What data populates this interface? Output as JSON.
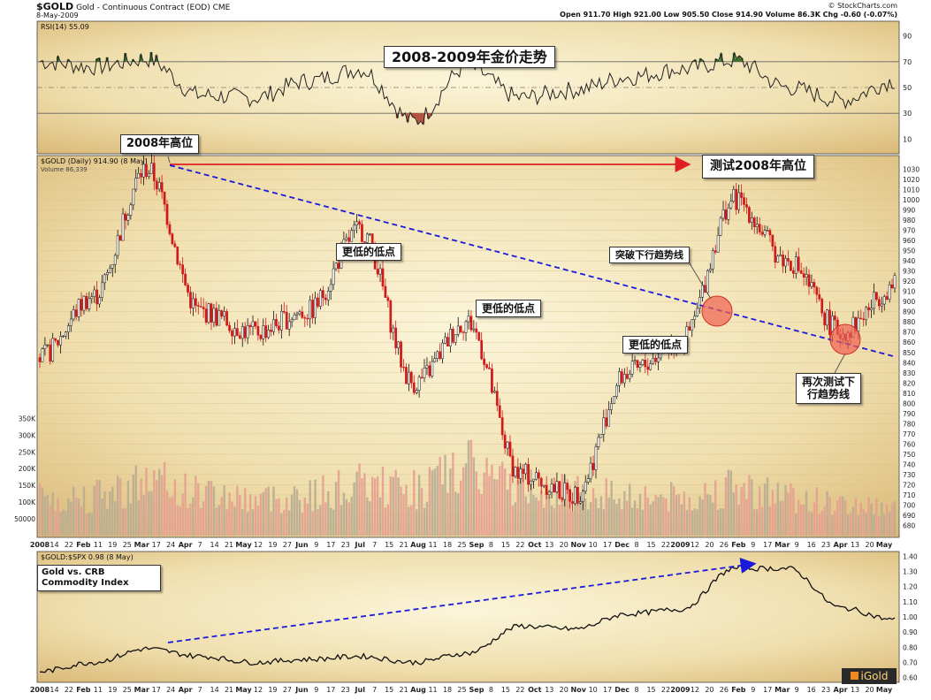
{
  "header": {
    "symbol": "$GOLD",
    "name": "Gold - Continuous Contract (EOD)",
    "exchange": "CME",
    "date": "8-May-2009",
    "stats_label": "Open 911.70  High 921.00  Low 905.50  Close 914.90  Volume 86.3K  Chg -0.60 (-0.07%)",
    "stockcharts": "© StockCharts.com"
  },
  "rsi_panel": {
    "label": "RSI(14) 55.09",
    "levels": [
      "90",
      "70",
      "50",
      "30",
      "10"
    ],
    "title": "2008-2009年金价走势"
  },
  "price_panel": {
    "legend_price": "$GOLD (Daily) 914.90 (8 May)",
    "legend_volume": "Volume 86,339",
    "volume_ticks": [
      "350K",
      "300K",
      "250K",
      "200K",
      "150K",
      "100K",
      "50000"
    ]
  },
  "ratio_panel": {
    "legend": "$GOLD:$SPX 0.98 (8 May)",
    "ticks": [
      "1.40",
      "1.30",
      "1.20",
      "1.10",
      "1.00",
      "0.90",
      "0.80",
      "0.70",
      "0.60"
    ]
  },
  "x_axis": {
    "labels": [
      "2008",
      "14",
      "22",
      "Feb",
      "11",
      "19",
      "25",
      "Mar",
      "17",
      "24",
      "Apr",
      "7",
      "14",
      "21",
      "May",
      "12",
      "19",
      "27",
      "Jun",
      "9",
      "17",
      "23",
      "Jul",
      "7",
      "15",
      "21",
      "Aug",
      "11",
      "18",
      "25",
      "Sep",
      "8",
      "15",
      "22",
      "Oct",
      "13",
      "20",
      "Nov",
      "10",
      "17",
      "Dec",
      "8",
      "15",
      "22",
      "2009",
      "12",
      "20",
      "26",
      "Feb",
      "9",
      "17",
      "Mar",
      "9",
      "16",
      "23",
      "Apr",
      "13",
      "20",
      "May"
    ]
  },
  "annotations": {
    "high_2008": "2008年高位",
    "test_high": "测试2008年高位",
    "lower_low_1": "更低的低点",
    "lower_low_2": "更低的低点",
    "lower_low_3": "更低的低点",
    "break_down": "突破下行趋势线",
    "retest_line1": "再次测试下",
    "retest_line2": "行趋势线",
    "ratio_line1": "Gold vs. CRB",
    "ratio_line2": "Commodity Index",
    "watermark": "iGold"
  },
  "chart_data": [
    {
      "type": "line",
      "name": "RSI(14)",
      "x": [
        "2008-01",
        "2008-02",
        "2008-03",
        "2008-04",
        "2008-05",
        "2008-06",
        "2008-07",
        "2008-08",
        "2008-09",
        "2008-10",
        "2008-11",
        "2008-12",
        "2009-01",
        "2009-02",
        "2009-03",
        "2009-04",
        "2009-05"
      ],
      "values": [
        70,
        66,
        72,
        44,
        42,
        55,
        64,
        24,
        66,
        42,
        48,
        58,
        64,
        71,
        50,
        40,
        55
      ],
      "ylim": [
        0,
        100
      ],
      "levels": [
        30,
        50,
        70
      ]
    },
    {
      "type": "candlestick",
      "name": "$GOLD (Daily)",
      "title": "2008-2009年金价走势",
      "x": [
        "2008-01",
        "2008-02",
        "2008-03",
        "2008-04",
        "2008-05",
        "2008-06",
        "2008-07",
        "2008-08",
        "2008-09",
        "2008-10",
        "2008-11",
        "2008-12",
        "2009-01",
        "2009-02",
        "2009-03",
        "2009-04",
        "2009-05"
      ],
      "values": [
        845,
        905,
        1030,
        890,
        870,
        890,
        970,
        820,
        880,
        730,
        710,
        830,
        860,
        1000,
        940,
        870,
        915
      ],
      "ylim": [
        670,
        1040
      ],
      "y_ticks": [
        680,
        690,
        700,
        710,
        720,
        730,
        740,
        750,
        760,
        770,
        780,
        790,
        800,
        810,
        820,
        830,
        840,
        850,
        860,
        870,
        880,
        890,
        900,
        910,
        920,
        930,
        940,
        950,
        960,
        970,
        980,
        990,
        1000,
        1010,
        1020,
        1030
      ],
      "high_2008": 1030,
      "downtrend_line": {
        "from": [
          "2008-03",
          1030
        ],
        "to": [
          "2009-05",
          850
        ]
      }
    },
    {
      "type": "bar",
      "name": "Volume",
      "x": [
        "2008-01",
        "2008-02",
        "2008-03",
        "2008-04",
        "2008-05",
        "2008-06",
        "2008-07",
        "2008-08",
        "2008-09",
        "2008-10",
        "2008-11",
        "2008-12",
        "2009-01",
        "2009-02",
        "2009-03",
        "2009-04",
        "2009-05"
      ],
      "values": [
        110000,
        120000,
        160000,
        130000,
        110000,
        120000,
        150000,
        140000,
        200000,
        150000,
        130000,
        120000,
        110000,
        140000,
        120000,
        90000,
        85000
      ],
      "ylim": [
        0,
        380000
      ]
    },
    {
      "type": "line",
      "name": "$GOLD:$SPX",
      "x": [
        "2008-01",
        "2008-02",
        "2008-03",
        "2008-04",
        "2008-05",
        "2008-06",
        "2008-07",
        "2008-08",
        "2008-09",
        "2008-10",
        "2008-11",
        "2008-12",
        "2009-01",
        "2009-02",
        "2009-03",
        "2009-04",
        "2009-05"
      ],
      "values": [
        0.64,
        0.7,
        0.79,
        0.74,
        0.7,
        0.72,
        0.74,
        0.7,
        0.76,
        0.94,
        0.92,
        1.02,
        1.05,
        1.32,
        1.32,
        1.06,
        0.98
      ],
      "ylim": [
        0.58,
        1.42
      ],
      "y_ticks": [
        0.6,
        0.7,
        0.8,
        0.9,
        1.0,
        1.1,
        1.2,
        1.3,
        1.4
      ],
      "trend_line": {
        "from": [
          "2008-03",
          0.8
        ],
        "to": [
          "2009-03",
          1.34
        ]
      }
    }
  ]
}
